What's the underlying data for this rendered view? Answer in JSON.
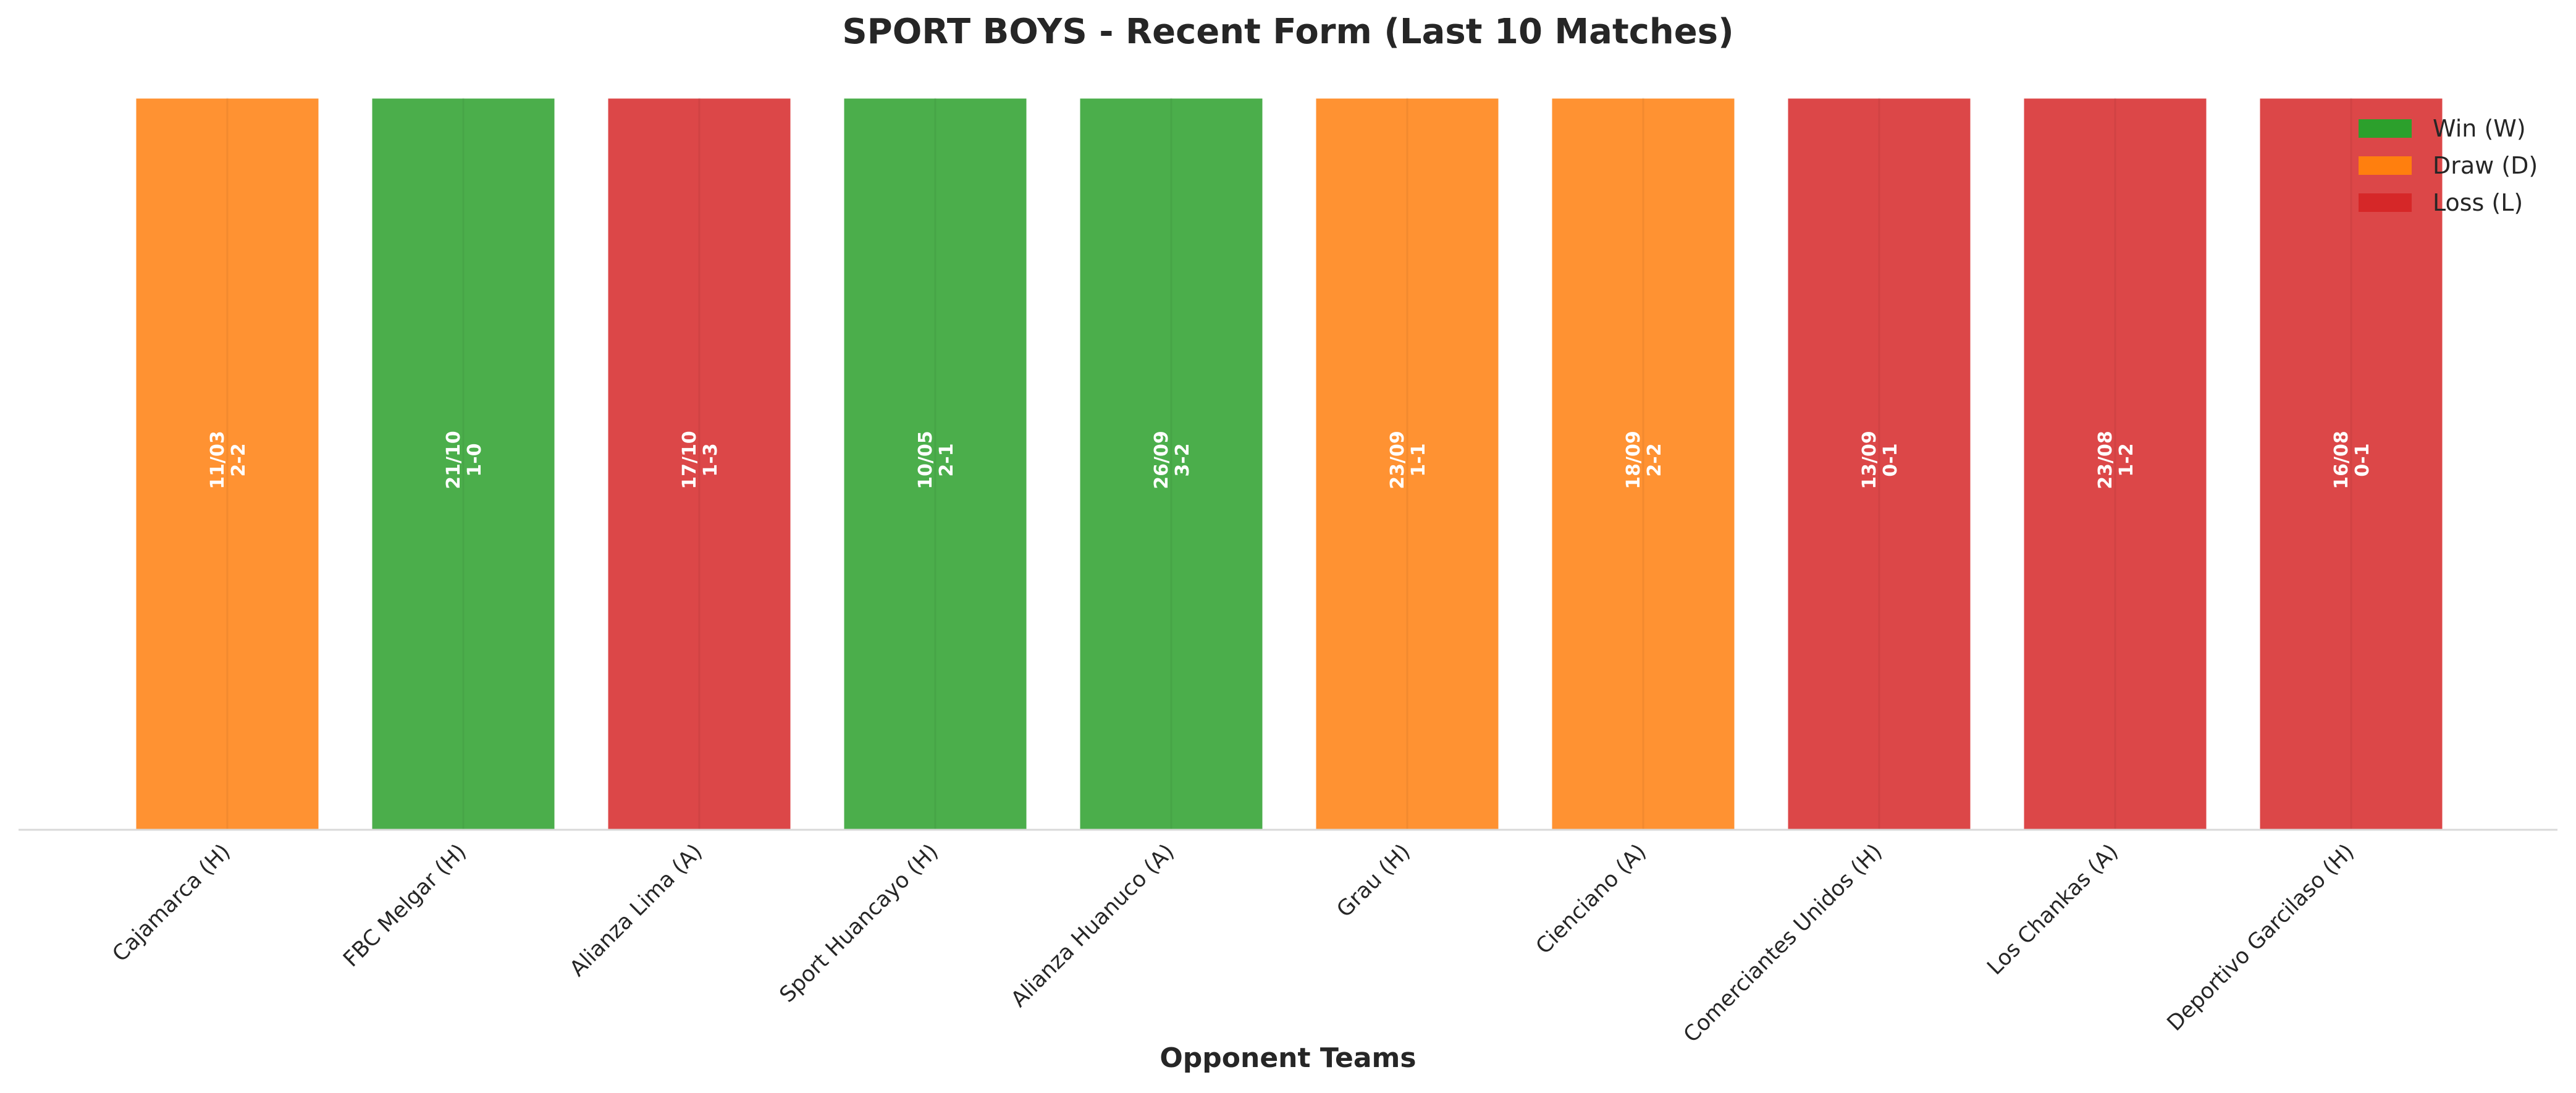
{
  "colors": {
    "win": "#2ca02c",
    "draw": "#ff7f0e",
    "loss": "#d62728",
    "axis": "#d9d9d9",
    "text": "#262626",
    "label": "#ffffff"
  },
  "chart_data": {
    "type": "bar",
    "title": "SPORT BOYS - Recent Form (Last 10 Matches)",
    "xlabel": "Opponent Teams",
    "ylabel": "",
    "grid": false,
    "legend_position": "top-right",
    "legend": [
      {
        "key": "W",
        "label": "Win (W)"
      },
      {
        "key": "D",
        "label": "Draw (D)"
      },
      {
        "key": "L",
        "label": "Loss (L)"
      }
    ],
    "categories": [
      "Cajamarca (H)",
      "FBC Melgar (H)",
      "Alianza Lima (A)",
      "Sport Huancayo (H)",
      "Alianza Huanuco (A)",
      "Grau (H)",
      "Cienciano (A)",
      "Comerciantes Unidos (H)",
      "Los Chankas (A)",
      "Deportivo Garcilaso (H)"
    ],
    "values": [
      1,
      1,
      1,
      1,
      1,
      1,
      1,
      1,
      1,
      1
    ],
    "ylim": [
      0,
      1
    ],
    "results": [
      "D",
      "W",
      "L",
      "W",
      "W",
      "D",
      "D",
      "L",
      "L",
      "L"
    ],
    "dates": [
      "11/03",
      "21/10",
      "17/10",
      "10/05",
      "26/09",
      "23/09",
      "18/09",
      "13/09",
      "23/08",
      "16/08"
    ],
    "scores": [
      "2-2",
      "1-0",
      "1-3",
      "2-1",
      "3-2",
      "1-1",
      "2-2",
      "0-1",
      "1-2",
      "0-1"
    ]
  }
}
